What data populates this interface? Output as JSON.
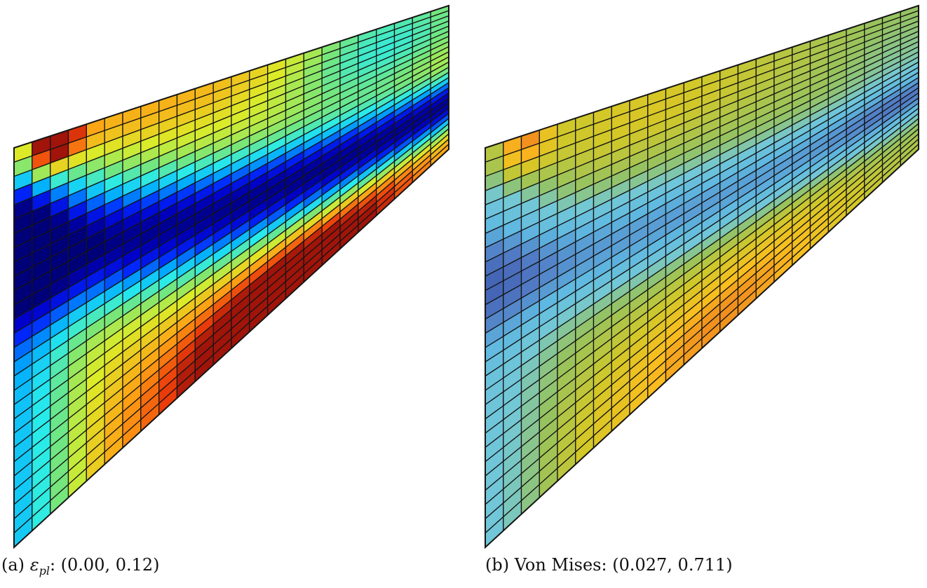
{
  "figure": {
    "panels": [
      {
        "id": "a",
        "tag": "(a)",
        "symbol": "ε",
        "subscript": "pl",
        "label_suffix": ":",
        "range_text": "(0.00, 0.12)",
        "range": [
          0.0,
          0.12
        ],
        "colormap": "jet"
      },
      {
        "id": "b",
        "tag": "(b)",
        "label_text": "Von Mises:",
        "range_text": "(0.027, 0.711)",
        "range": [
          0.027,
          0.711
        ],
        "colormap": "muted-jet"
      }
    ],
    "mesh": {
      "columns": 24,
      "rows": 28,
      "line_color": "#151515"
    }
  }
}
